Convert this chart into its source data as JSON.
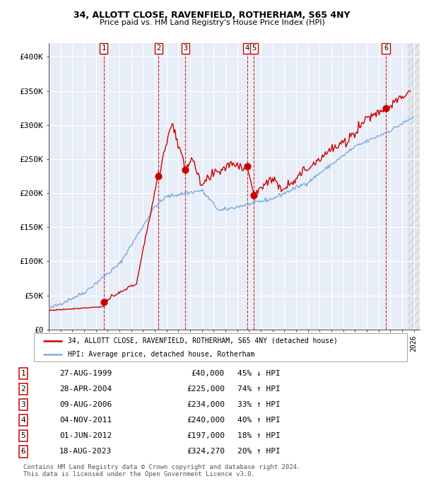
{
  "title1": "34, ALLOTT CLOSE, RAVENFIELD, ROTHERHAM, S65 4NY",
  "title2": "Price paid vs. HM Land Registry's House Price Index (HPI)",
  "legend_label_red": "34, ALLOTT CLOSE, RAVENFIELD, ROTHERHAM, S65 4NY (detached house)",
  "legend_label_blue": "HPI: Average price, detached house, Rotherham",
  "footer1": "Contains HM Land Registry data © Crown copyright and database right 2024.",
  "footer2": "This data is licensed under the Open Government Licence v3.0.",
  "sales": [
    {
      "num": 1,
      "date_dec": 1999.65,
      "price": 40000,
      "label": "27-AUG-1999",
      "pct": "45%",
      "dir": "↓"
    },
    {
      "num": 2,
      "date_dec": 2004.32,
      "price": 225000,
      "label": "28-APR-2004",
      "pct": "74%",
      "dir": "↑"
    },
    {
      "num": 3,
      "date_dec": 2006.6,
      "price": 234000,
      "label": "09-AUG-2006",
      "pct": "33%",
      "dir": "↑"
    },
    {
      "num": 4,
      "date_dec": 2011.84,
      "price": 240000,
      "label": "04-NOV-2011",
      "pct": "40%",
      "dir": "↑"
    },
    {
      "num": 5,
      "date_dec": 2012.42,
      "price": 197000,
      "label": "01-JUN-2012",
      "pct": "18%",
      "dir": "↑"
    },
    {
      "num": 6,
      "date_dec": 2023.63,
      "price": 324270,
      "label": "18-AUG-2023",
      "pct": "20%",
      "dir": "↑"
    }
  ],
  "xmin": 1995.0,
  "xmax": 2026.5,
  "ymin": 0,
  "ymax": 420000,
  "yticks": [
    0,
    50000,
    100000,
    150000,
    200000,
    250000,
    300000,
    350000,
    400000
  ],
  "ytick_labels": [
    "£0",
    "£50K",
    "£100K",
    "£150K",
    "£200K",
    "£250K",
    "£300K",
    "£350K",
    "£400K"
  ],
  "bg_color": "#e8eef8",
  "grid_color": "#ffffff",
  "red_color": "#cc0000",
  "blue_color": "#7aaddd",
  "hatch_start": 2025.5
}
